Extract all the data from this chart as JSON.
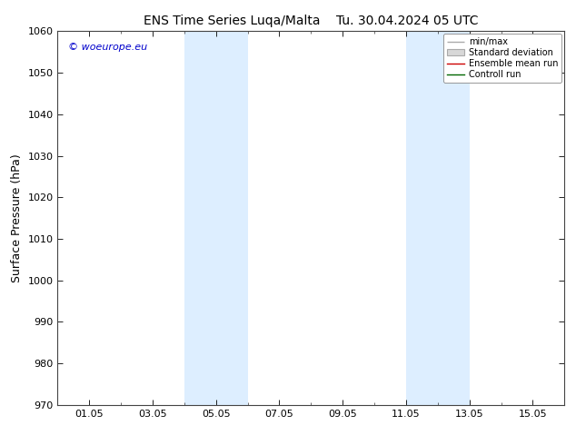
{
  "title_left": "ENS Time Series Luqa/Malta",
  "title_right": "Tu. 30.04.2024 05 UTC",
  "ylabel": "Surface Pressure (hPa)",
  "ylim": [
    970,
    1060
  ],
  "yticks": [
    970,
    980,
    990,
    1000,
    1010,
    1020,
    1030,
    1040,
    1050,
    1060
  ],
  "xtick_labels": [
    "01.05",
    "03.05",
    "05.05",
    "07.05",
    "09.05",
    "11.05",
    "13.05",
    "15.05"
  ],
  "xtick_positions": [
    1,
    3,
    5,
    7,
    9,
    11,
    13,
    15
  ],
  "shaded_bands": [
    {
      "xmin": 4.0,
      "xmax": 6.0
    },
    {
      "xmin": 11.0,
      "xmax": 13.0
    }
  ],
  "shade_color": "#ddeeff",
  "background_color": "#ffffff",
  "plot_bg_color": "#ffffff",
  "watermark": "© woeurope.eu",
  "legend_labels": [
    "min/max",
    "Standard deviation",
    "Ensemble mean run",
    "Controll run"
  ],
  "legend_colors": [
    "#aaaaaa",
    "#cccccc",
    "#cc0000",
    "#006600"
  ],
  "title_fontsize": 10,
  "tick_fontsize": 8,
  "ylabel_fontsize": 9,
  "xlim": [
    0,
    16
  ],
  "minor_xtick_positions": [
    0,
    1,
    2,
    3,
    4,
    5,
    6,
    7,
    8,
    9,
    10,
    11,
    12,
    13,
    14,
    15,
    16
  ]
}
